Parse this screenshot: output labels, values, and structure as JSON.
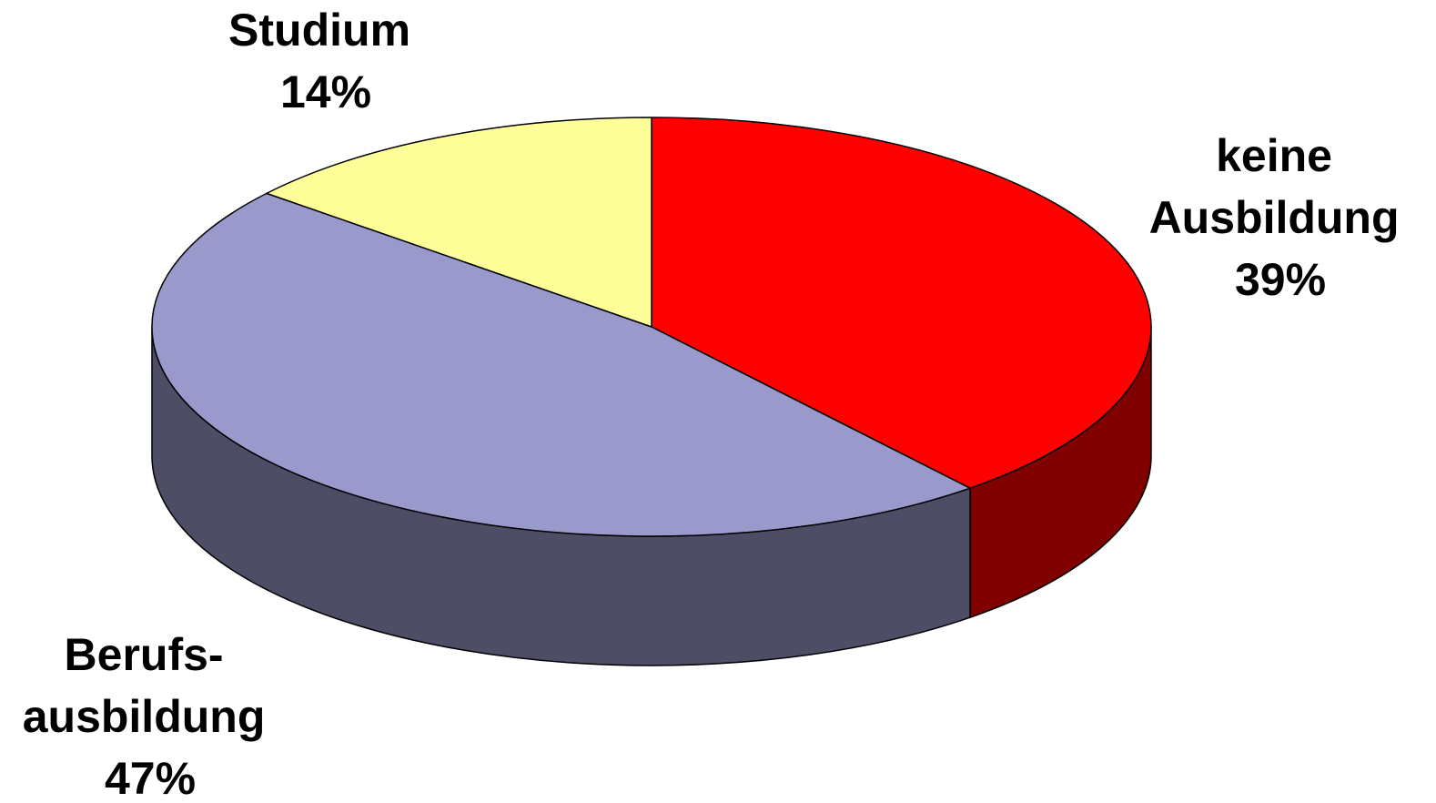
{
  "chart_data": {
    "type": "pie",
    "style": "3d",
    "title": "",
    "legend": "none",
    "slices": [
      {
        "category": "keine Ausbildung",
        "label_lines": [
          "keine",
          "Ausbildung",
          "39%"
        ],
        "value": 39,
        "color": "#ff0000",
        "side_color": "#800000"
      },
      {
        "category": "Berufsausbildung",
        "label_lines": [
          "Berufs-",
          "ausbildung",
          "47%"
        ],
        "value": 47,
        "color": "#9999cc",
        "side_color": "#4d4d66"
      },
      {
        "category": "Studium",
        "label_lines": [
          "Studium",
          "14%"
        ],
        "value": 14,
        "color": "#ffff99",
        "side_color": "#808040"
      }
    ]
  }
}
